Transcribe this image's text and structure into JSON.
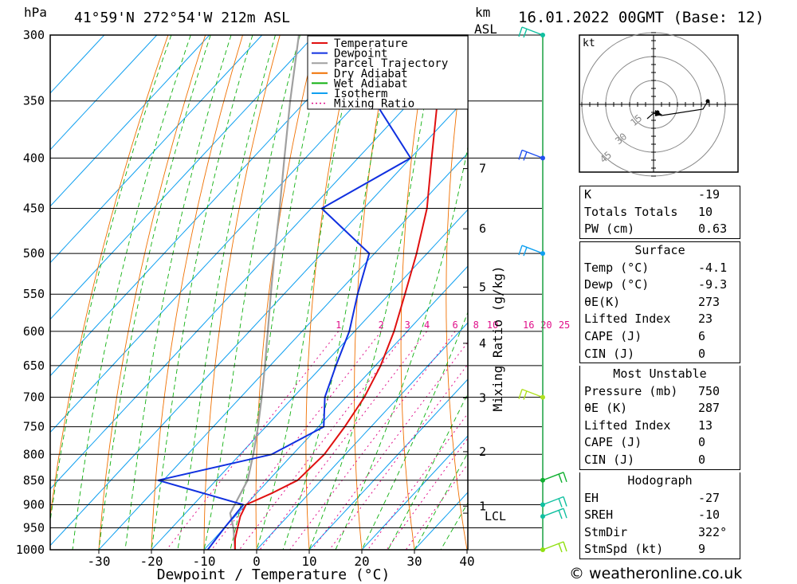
{
  "header": {
    "hpa_label": "hPa",
    "location": "41°59'N  272°54'W  212m  ASL",
    "km_label": "km",
    "asl_label": "ASL",
    "datetime": "16.01.2022  00GMT  (Base: 12)"
  },
  "chart_data": {
    "type": "skew-t log-p",
    "pressure_levels": [
      300,
      350,
      400,
      450,
      500,
      550,
      600,
      650,
      700,
      750,
      800,
      850,
      900,
      950,
      1000
    ],
    "x_ticks": [
      -30,
      -20,
      -10,
      0,
      10,
      20,
      30,
      40
    ],
    "xlabel": "Dewpoint / Temperature (°C)",
    "right_axis_label": "Mixing Ratio (g/kg)",
    "km_ticks": [
      {
        "km": "1",
        "p": 903
      },
      {
        "km": "2",
        "p": 795
      },
      {
        "km": "3",
        "p": 701
      },
      {
        "km": "4",
        "p": 617
      },
      {
        "km": "5",
        "p": 541
      },
      {
        "km": "6",
        "p": 472
      },
      {
        "km": "7",
        "p": 410
      }
    ],
    "lcl_label": "LCL",
    "lcl_pressure": 918,
    "mixing_ratio_labels": [
      "1",
      "2",
      "3",
      "4",
      "6",
      "8",
      "10",
      "16",
      "20",
      "25"
    ],
    "mixing_ratio_values": [
      1,
      2,
      3,
      4,
      6,
      8,
      10,
      16,
      20,
      25
    ],
    "legend": [
      {
        "name": "Temperature",
        "color": "#e01010"
      },
      {
        "name": "Dewpoint",
        "color": "#1030e0"
      },
      {
        "name": "Parcel Trajectory",
        "color": "#a0a0a0"
      },
      {
        "name": "Dry Adiabat",
        "color": "#f07000"
      },
      {
        "name": "Wet Adiabat",
        "color": "#10b010"
      },
      {
        "name": "Isotherm",
        "color": "#10a0f0"
      },
      {
        "name": "Mixing Ratio",
        "color": "#e0108a"
      }
    ],
    "temperature": [
      [
        1000,
        -4.1
      ],
      [
        975,
        -6
      ],
      [
        950,
        -7.5
      ],
      [
        925,
        -9
      ],
      [
        900,
        -10
      ],
      [
        875,
        -7
      ],
      [
        850,
        -4.5
      ],
      [
        800,
        -4
      ],
      [
        750,
        -5
      ],
      [
        700,
        -6.5
      ],
      [
        650,
        -9
      ],
      [
        600,
        -12.5
      ],
      [
        550,
        -17
      ],
      [
        500,
        -22
      ],
      [
        450,
        -28
      ],
      [
        400,
        -36
      ],
      [
        350,
        -45
      ],
      [
        320,
        -49
      ],
      [
        300,
        -50
      ]
    ],
    "dewpoint": [
      [
        1000,
        -9.3
      ],
      [
        950,
        -10
      ],
      [
        900,
        -10.5
      ],
      [
        850,
        -31
      ],
      [
        800,
        -14
      ],
      [
        750,
        -9
      ],
      [
        700,
        -14
      ],
      [
        650,
        -17.5
      ],
      [
        600,
        -21
      ],
      [
        550,
        -26
      ],
      [
        500,
        -31
      ],
      [
        450,
        -48
      ],
      [
        400,
        -40
      ],
      [
        350,
        -57
      ],
      [
        300,
        -71
      ]
    ],
    "parcel": [
      [
        1000,
        -4.1
      ],
      [
        950,
        -8.3
      ],
      [
        918,
        -11.5
      ],
      [
        850,
        -14
      ],
      [
        800,
        -17.5
      ],
      [
        750,
        -21.5
      ],
      [
        700,
        -26
      ],
      [
        650,
        -31
      ],
      [
        600,
        -36.5
      ],
      [
        550,
        -42.5
      ],
      [
        500,
        -49
      ],
      [
        450,
        -56
      ],
      [
        400,
        -64
      ],
      [
        350,
        -73
      ],
      [
        300,
        -83
      ]
    ],
    "wind_barbs": [
      {
        "p": 1000,
        "color": "#90e010"
      },
      {
        "p": 925,
        "color": "#10c0a0"
      },
      {
        "p": 900,
        "color": "#10c0a0"
      },
      {
        "p": 850,
        "color": "#10b030"
      },
      {
        "p": 700,
        "color": "#b0e020"
      },
      {
        "p": 500,
        "color": "#10a0f0"
      },
      {
        "p": 400,
        "color": "#2050f0"
      },
      {
        "p": 300,
        "color": "#10c0a0"
      }
    ],
    "hodograph": {
      "unit_label": "kt",
      "ring_labels": [
        "15",
        "30",
        "45"
      ]
    }
  },
  "indices": {
    "rows": [
      {
        "label": "K",
        "value": "-19"
      },
      {
        "label": "Totals Totals",
        "value": "10"
      },
      {
        "label": "PW (cm)",
        "value": "0.63"
      }
    ]
  },
  "surface": {
    "title": "Surface",
    "rows": [
      {
        "label": "Temp (°C)",
        "value": "-4.1"
      },
      {
        "label": "Dewp (°C)",
        "value": "-9.3"
      },
      {
        "label": "θE(K)",
        "value": "273"
      },
      {
        "label": "Lifted Index",
        "value": "23"
      },
      {
        "label": "CAPE (J)",
        "value": "6"
      },
      {
        "label": "CIN (J)",
        "value": "0"
      }
    ]
  },
  "most_unstable": {
    "title": "Most Unstable",
    "rows": [
      {
        "label": "Pressure (mb)",
        "value": "750"
      },
      {
        "label": "θE (K)",
        "value": "287"
      },
      {
        "label": "Lifted Index",
        "value": "13"
      },
      {
        "label": "CAPE (J)",
        "value": "0"
      },
      {
        "label": "CIN (J)",
        "value": "0"
      }
    ]
  },
  "hodograph_table": {
    "title": "Hodograph",
    "rows": [
      {
        "label": "EH",
        "value": "-27"
      },
      {
        "label": "SREH",
        "value": "-10"
      },
      {
        "label": "StmDir",
        "value": "322°"
      },
      {
        "label": "StmSpd (kt)",
        "value": "9"
      }
    ]
  },
  "footer": {
    "credit": "© weatheronline.co.uk"
  }
}
